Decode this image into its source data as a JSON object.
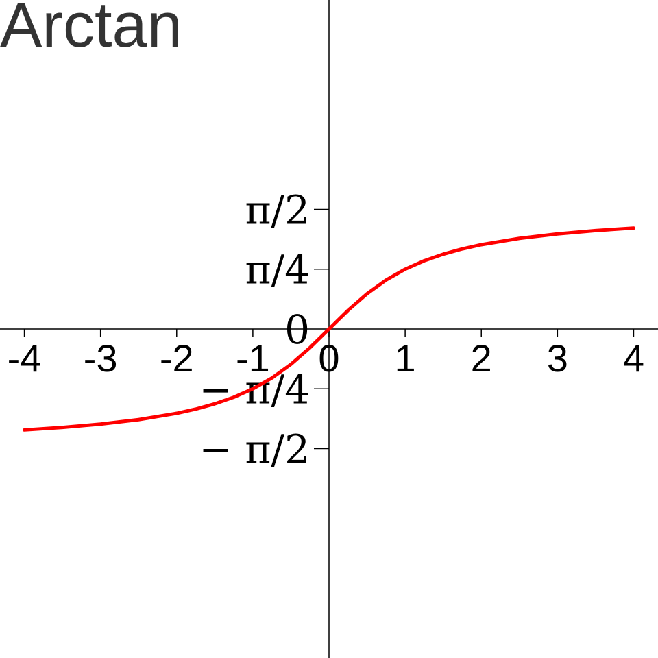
{
  "chart_data": {
    "type": "line",
    "title": "Arctan",
    "xlabel": "",
    "ylabel": "",
    "xlim": [
      -4.32,
      4.32
    ],
    "ylim": [
      -4.32,
      4.32
    ],
    "grid": false,
    "x_ticks": [
      {
        "value": -4,
        "label": "-4"
      },
      {
        "value": -3,
        "label": "-3"
      },
      {
        "value": -2,
        "label": "-2"
      },
      {
        "value": -1,
        "label": "-1"
      },
      {
        "value": 0,
        "label": "0"
      },
      {
        "value": 1,
        "label": "1"
      },
      {
        "value": 2,
        "label": "2"
      },
      {
        "value": 3,
        "label": "3"
      },
      {
        "value": 4,
        "label": "4"
      }
    ],
    "y_ticks": [
      {
        "value": 1.5708,
        "label": "π/2"
      },
      {
        "value": 0.7854,
        "label": "π/4"
      },
      {
        "value": 0,
        "label": "0"
      },
      {
        "value": -0.7854,
        "label": "− π/4"
      },
      {
        "value": -1.5708,
        "label": "− π/2"
      }
    ],
    "series": [
      {
        "color": "#ff0000",
        "x": [
          -4,
          -3.5,
          -3,
          -2.5,
          -2,
          -1.75,
          -1.5,
          -1.25,
          -1,
          -0.75,
          -0.5,
          -0.25,
          0,
          0.25,
          0.5,
          0.75,
          1,
          1.25,
          1.5,
          1.75,
          2,
          2.5,
          3,
          3.5,
          4
        ],
        "y": [
          -1.3258,
          -1.2925,
          -1.249,
          -1.1903,
          -1.1071,
          -1.0517,
          -0.9828,
          -0.8961,
          -0.7854,
          -0.6435,
          -0.4636,
          -0.245,
          0,
          0.245,
          0.4636,
          0.6435,
          0.7854,
          0.8961,
          0.9828,
          1.0517,
          1.1071,
          1.1903,
          1.249,
          1.2925,
          1.3258
        ]
      }
    ]
  }
}
